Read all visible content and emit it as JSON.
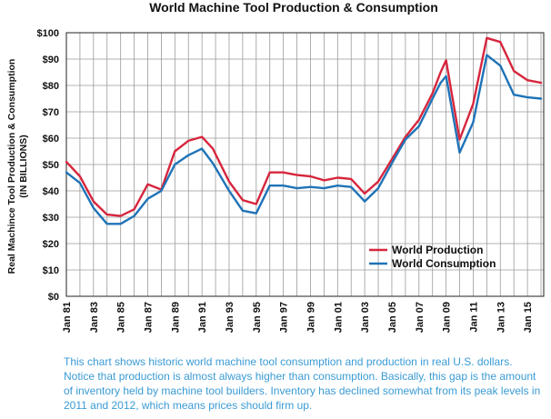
{
  "chart_data": {
    "type": "line",
    "title": "World Machine Tool Production & Consumption",
    "ylabel_lines": [
      "Real Machince Tool Production & Consumption",
      "(IN  BILLIONS)"
    ],
    "xlabel": "",
    "x_years": [
      1981,
      1982,
      1983,
      1984,
      1985,
      1986,
      1987,
      1988,
      1989,
      1990,
      1991,
      1992,
      1993,
      1994,
      1995,
      1996,
      1997,
      1998,
      1999,
      2000,
      2001,
      2002,
      2003,
      2004,
      2005,
      2006,
      2007,
      2008,
      2009,
      2010,
      2011,
      2012,
      2013,
      2014,
      2015,
      2016
    ],
    "x_tick_labels": [
      "Jan 81",
      "Jan 83",
      "Jan 85",
      "Jan 87",
      "Jan 89",
      "Jan 91",
      "Jan 93",
      "Jan 95",
      "Jan 97",
      "Jan 99",
      "Jan 01",
      "Jan 03",
      "Jan 05",
      "Jan 07",
      "Jan 09",
      "Jan 11",
      "Jan 13",
      "Jan 15"
    ],
    "x_tick_years": [
      1981,
      1983,
      1985,
      1987,
      1989,
      1991,
      1993,
      1995,
      1997,
      1999,
      2001,
      2003,
      2005,
      2007,
      2009,
      2011,
      2013,
      2015
    ],
    "y_tick_labels": [
      "$0",
      "$10",
      "$20",
      "$30",
      "$40",
      "$50",
      "$60",
      "$70",
      "$80",
      "$90",
      "$100"
    ],
    "y_tick_values": [
      0,
      10,
      20,
      30,
      40,
      50,
      60,
      70,
      80,
      90,
      100
    ],
    "ylim": [
      0,
      100
    ],
    "xlim": [
      1981,
      2016.2
    ],
    "grid": true,
    "legend_position": "lower-right",
    "series": [
      {
        "name": "World Production",
        "color": "#d7263d",
        "points": [
          [
            1981,
            51
          ],
          [
            1982,
            45.5
          ],
          [
            1983,
            36
          ],
          [
            1984,
            31
          ],
          [
            1985,
            30.5
          ],
          [
            1986,
            33
          ],
          [
            1987,
            42.5
          ],
          [
            1988,
            40.5
          ],
          [
            1989,
            55
          ],
          [
            1990,
            59
          ],
          [
            1991,
            60.5
          ],
          [
            1991.8,
            56
          ],
          [
            1993,
            43.5
          ],
          [
            1994,
            36.5
          ],
          [
            1995,
            35
          ],
          [
            1996,
            47
          ],
          [
            1997,
            47
          ],
          [
            1998,
            46
          ],
          [
            1999,
            45.5
          ],
          [
            2000,
            44
          ],
          [
            2001,
            45
          ],
          [
            2002,
            44.5
          ],
          [
            2003,
            39
          ],
          [
            2004,
            43.5
          ],
          [
            2005,
            52
          ],
          [
            2006,
            60.5
          ],
          [
            2007,
            67
          ],
          [
            2008,
            77
          ],
          [
            2008.6,
            85
          ],
          [
            2009,
            89.5
          ],
          [
            2010,
            59.5
          ],
          [
            2011,
            73
          ],
          [
            2012,
            98
          ],
          [
            2013,
            96.5
          ],
          [
            2014,
            85.5
          ],
          [
            2015,
            82
          ],
          [
            2016,
            81
          ]
        ]
      },
      {
        "name": "World Consumption",
        "color": "#1f73b7",
        "points": [
          [
            1981,
            47
          ],
          [
            1982,
            43
          ],
          [
            1983,
            33.5
          ],
          [
            1984,
            27.5
          ],
          [
            1985,
            27.5
          ],
          [
            1986,
            30.5
          ],
          [
            1987,
            37
          ],
          [
            1988,
            40
          ],
          [
            1989,
            50
          ],
          [
            1990,
            53.5
          ],
          [
            1991,
            56
          ],
          [
            1991.8,
            50.5
          ],
          [
            1993,
            40
          ],
          [
            1994,
            32.5
          ],
          [
            1995,
            31.5
          ],
          [
            1996,
            42
          ],
          [
            1997,
            42
          ],
          [
            1998,
            41
          ],
          [
            1999,
            41.5
          ],
          [
            2000,
            41
          ],
          [
            2001,
            42
          ],
          [
            2002,
            41.5
          ],
          [
            2003,
            36
          ],
          [
            2004,
            41
          ],
          [
            2005,
            50.5
          ],
          [
            2006,
            59.5
          ],
          [
            2007,
            64.5
          ],
          [
            2008,
            75
          ],
          [
            2008.6,
            81
          ],
          [
            2009,
            83.5
          ],
          [
            2010,
            54.5
          ],
          [
            2011,
            66
          ],
          [
            2012,
            91.5
          ],
          [
            2013,
            87.5
          ],
          [
            2014,
            76.5
          ],
          [
            2015,
            75.5
          ],
          [
            2016,
            75
          ]
        ]
      }
    ]
  },
  "caption": "This chart shows historic world machine tool consumption and production in real U.S. dollars. Notice that production is almost always higher than consumption. Basically, this gap is the amount of inventory held by machine tool builders. Inventory has declined somewhat from its peak levels in 2011 and 2012, which means prices should firm up."
}
